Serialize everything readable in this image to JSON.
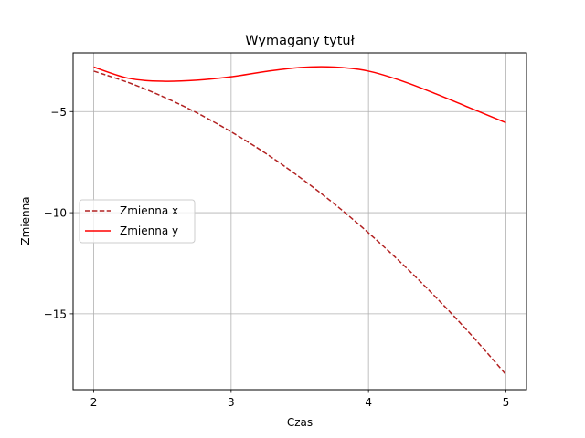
{
  "chart_data": {
    "type": "line",
    "title": "Wymagany tytuł",
    "xlabel": "Czas",
    "ylabel": "Zmienna",
    "xlim": [
      1.85,
      5.15
    ],
    "ylim": [
      -18.75,
      -2.1
    ],
    "grid": true,
    "legend_position": "center-left",
    "x_ticks": [
      2,
      3,
      4,
      5
    ],
    "x_tick_labels": [
      "2",
      "3",
      "4",
      "5"
    ],
    "y_ticks": [
      -5,
      -10,
      -15
    ],
    "y_tick_labels": [
      "−5",
      "−10",
      "−15"
    ],
    "series": [
      {
        "name": "Zmienna x",
        "color": "#b22222",
        "style": "dashed",
        "x": [
          2.0,
          2.25,
          2.5,
          2.75,
          3.0,
          3.25,
          3.5,
          3.75,
          4.0,
          4.25,
          4.5,
          4.75,
          5.0
        ],
        "y": [
          -3.0,
          -3.56,
          -4.25,
          -5.06,
          -6.0,
          -7.06,
          -8.25,
          -9.56,
          -11.0,
          -12.56,
          -14.25,
          -16.06,
          -18.0
        ]
      },
      {
        "name": "Zmienna y",
        "color": "#ff0000",
        "style": "solid",
        "x": [
          2.0,
          2.25,
          2.5,
          2.75,
          3.0,
          3.25,
          3.5,
          3.75,
          4.0,
          4.25,
          4.5,
          4.75,
          5.0
        ],
        "y": [
          -2.8,
          -3.35,
          -3.5,
          -3.45,
          -3.28,
          -3.02,
          -2.82,
          -2.8,
          -3.0,
          -3.5,
          -4.15,
          -4.85,
          -5.55
        ]
      }
    ]
  }
}
